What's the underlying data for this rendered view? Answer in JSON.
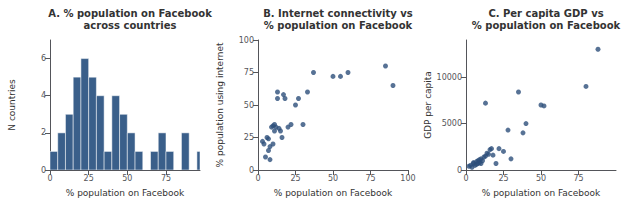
{
  "chart_data": [
    {
      "type": "histogram",
      "title": "A. % population on Facebook\nacross countries",
      "xlabel": "% population on Facebook",
      "ylabel": "N countries",
      "bins": [
        0,
        5,
        10,
        15,
        20,
        25,
        30,
        35,
        40,
        45,
        50,
        55,
        60,
        65,
        70,
        75,
        80,
        85,
        90,
        95,
        100
      ],
      "values": [
        1,
        2,
        3,
        5,
        6,
        5,
        4,
        1,
        4,
        3,
        2,
        1,
        0,
        1,
        2,
        1,
        0,
        2,
        0,
        1
      ],
      "color": "#3a5f8a",
      "xlim": [
        0,
        97
      ],
      "ylim": [
        0,
        7
      ],
      "xticks": [
        0,
        25,
        50,
        75
      ],
      "yticks": [
        0,
        2,
        4,
        6
      ],
      "grid": false
    },
    {
      "type": "scatter",
      "title": "B. Internet connectivity vs\n% population on Facebook",
      "xlabel": "% population on Facebook",
      "ylabel": "% population using internet",
      "x": [
        3,
        4,
        5,
        6,
        7,
        7,
        8,
        8,
        9,
        10,
        10,
        11,
        11,
        12,
        13,
        13,
        14,
        15,
        16,
        17,
        18,
        20,
        22,
        25,
        27,
        30,
        33,
        37,
        50,
        55,
        60,
        85,
        90
      ],
      "values": [
        22,
        20,
        10,
        25,
        15,
        24,
        18,
        8,
        33,
        34,
        20,
        30,
        35,
        33,
        55,
        60,
        32,
        30,
        25,
        58,
        55,
        33,
        35,
        50,
        55,
        35,
        60,
        75,
        72,
        72,
        75,
        80,
        65
      ],
      "color": "#2d4f7a",
      "xlim": [
        0,
        100
      ],
      "ylim": [
        0,
        100
      ],
      "xticks": [
        0,
        25,
        50,
        75,
        100
      ],
      "yticks": [
        0,
        25,
        50,
        75,
        100
      ],
      "grid": false
    },
    {
      "type": "scatter",
      "title": "C. Per capita GDP vs\n% population on Facebook",
      "xlabel": "% population on Facebook",
      "ylabel": "GDP per capita",
      "x": [
        2,
        3,
        4,
        5,
        5,
        6,
        7,
        7,
        8,
        8,
        9,
        9,
        10,
        10,
        11,
        12,
        13,
        13,
        14,
        15,
        16,
        17,
        18,
        20,
        22,
        25,
        28,
        30,
        35,
        38,
        40,
        50,
        52,
        80,
        88
      ],
      "values": [
        400,
        500,
        300,
        700,
        800,
        500,
        600,
        900,
        700,
        1000,
        800,
        1100,
        700,
        1200,
        1000,
        1400,
        1500,
        7200,
        1800,
        1700,
        2200,
        2300,
        1600,
        700,
        2300,
        2000,
        4300,
        1200,
        8400,
        4000,
        5000,
        7000,
        6900,
        9000,
        13000
      ],
      "color": "#2d4f7a",
      "xlim": [
        0,
        100
      ],
      "ylim": [
        0,
        14000
      ],
      "xticks": [
        0,
        25,
        50,
        75
      ],
      "yticks": [
        0,
        5000,
        10000
      ],
      "grid": false
    }
  ]
}
